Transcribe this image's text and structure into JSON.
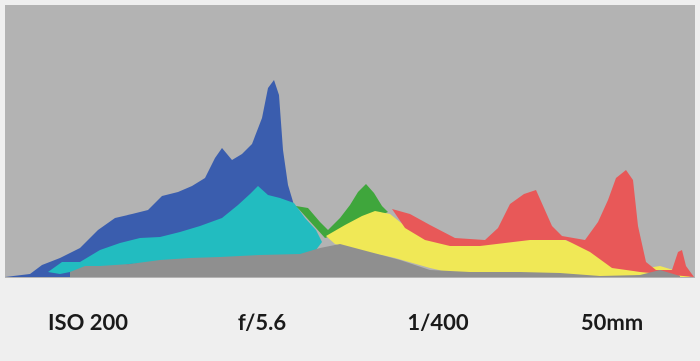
{
  "exposure_settings": {
    "iso": "ISO 200",
    "aperture": "f/5.6",
    "shutter_speed": "1/400",
    "focal_length": "50mm"
  }
}
